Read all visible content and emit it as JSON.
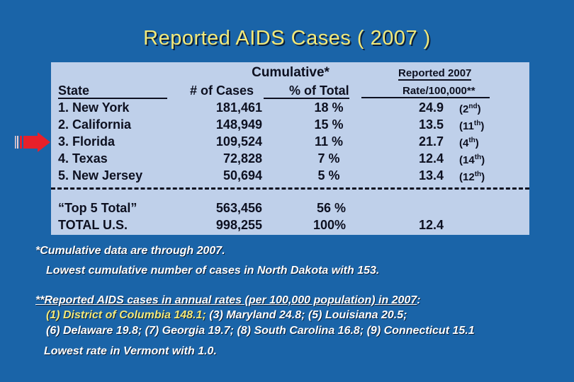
{
  "title": "Reported  AIDS  Cases  ( 2007 )",
  "headers": {
    "cumulative": "Cumulative*",
    "state": "State",
    "num_cases": "# of Cases",
    "pct_total": "% of Total",
    "reported_2007": "Reported 2007",
    "rate": "Rate/100,000**"
  },
  "rows": [
    {
      "state": "1. New York",
      "cases": "181,461",
      "pct": "18 %",
      "rate": "24.9",
      "rank": "(2",
      "rank_sup": "nd",
      "rank_end": ")"
    },
    {
      "state": "2. California",
      "cases": "148,949",
      "pct": "15 %",
      "rate": "13.5",
      "rank": "(11",
      "rank_sup": "th",
      "rank_end": ")"
    },
    {
      "state": "3. Florida",
      "cases": "109,524",
      "pct": "11 %",
      "rate": "21.7",
      "rank": "(4",
      "rank_sup": "th",
      "rank_end": ")"
    },
    {
      "state": "4. Texas",
      "cases": "72,828",
      "pct": "7 %",
      "rate": "12.4",
      "rank": "(14",
      "rank_sup": "th",
      "rank_end": ")"
    },
    {
      "state": "5. New Jersey",
      "cases": "50,694",
      "pct": "5 %",
      "rate": "13.4",
      "rank": "(12",
      "rank_sup": "th",
      "rank_end": ")"
    }
  ],
  "totals": [
    {
      "label": "“Top 5 Total”",
      "cases": "563,456",
      "pct": "56 %",
      "rate": ""
    },
    {
      "label": "TOTAL U.S.",
      "cases": "998,255",
      "pct": "100%",
      "rate": "12.4"
    }
  ],
  "notes": {
    "cumulative_note": "*Cumulative data are through 2007.",
    "lowest_cumulative": "Lowest cumulative number of cases in North Dakota with 153.",
    "rates_note_head": "**Reported AIDS cases in annual rates (per 100,000 population) in 2007",
    "rates_note_colon": ":",
    "line1_hl": "(1) District of Columbia 148.1;",
    "line1_rest": "  (3) Maryland 24.8;  (5) Louisiana 20.5;",
    "line2": "(6) Delaware 19.8;  (7) Georgia 19.7;  (8) South Carolina 16.8;  (9) Connecticut 15.1",
    "lowest_rate": "Lowest rate in Vermont with 1.0."
  },
  "colors": {
    "background": "#1a64a8",
    "panel": "#bfd0ea",
    "title": "#f2e97a",
    "arrow": "#e8202a"
  }
}
